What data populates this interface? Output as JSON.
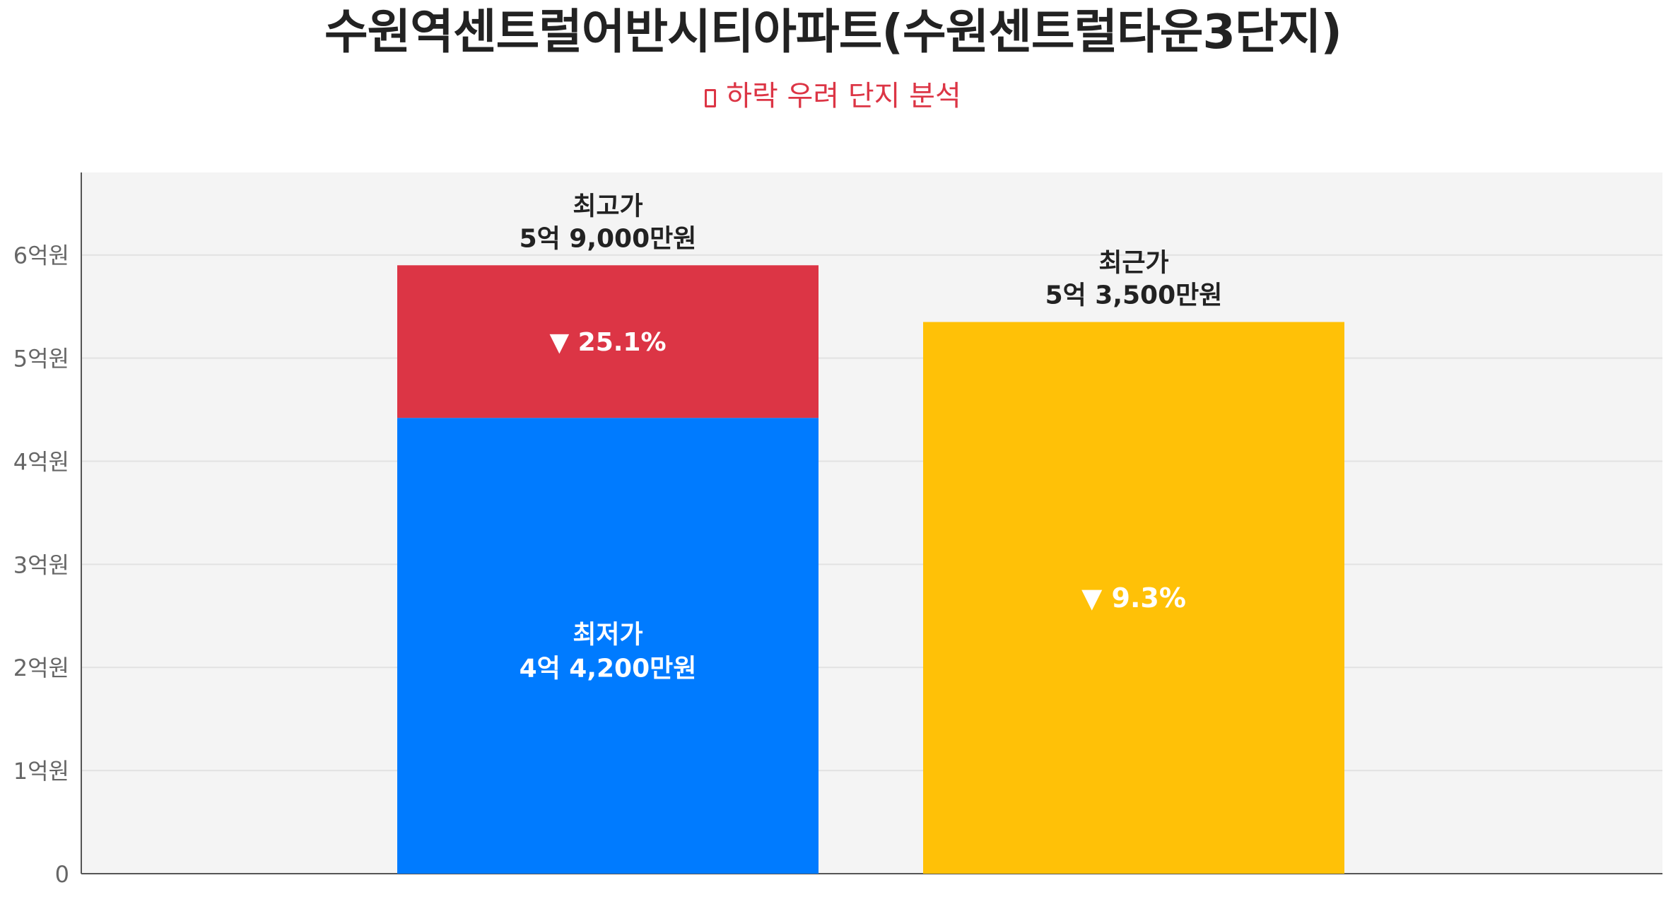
{
  "title": "수원역센트럴어반시티아파트(수원센트럴타운3단지)",
  "subtitle": "하락 우려 단지 분석",
  "colors": {
    "background_plot": "#f4f4f4",
    "lowest": "#007bff",
    "drop": "#dc3545",
    "recent": "#ffc107",
    "text_dark": "#222222",
    "text_white": "#ffffff",
    "axis_text": "#666666"
  },
  "chart_data": {
    "type": "bar",
    "unit": "억원",
    "ylim": [
      0,
      6.8
    ],
    "y_ticks": [
      {
        "value": 0,
        "label": "0"
      },
      {
        "value": 1,
        "label": "1억원"
      },
      {
        "value": 2,
        "label": "2억원"
      },
      {
        "value": 3,
        "label": "3억원"
      },
      {
        "value": 4,
        "label": "4억원"
      },
      {
        "value": 5,
        "label": "5억원"
      },
      {
        "value": 6,
        "label": "6억원"
      }
    ],
    "grid": true,
    "bars": [
      {
        "kind": "stacked",
        "segments": [
          {
            "name": "최저가",
            "value": 4.42,
            "label_line1": "최저가",
            "label_line2": "4억 4,200만원",
            "color": "#007bff"
          },
          {
            "name": "최고가",
            "value": 1.48,
            "top_value": 5.9,
            "inner_label": "▼ 25.1%",
            "color": "#dc3545"
          }
        ],
        "top_label_line1": "최고가",
        "top_label_line2": "5억 9,000만원"
      },
      {
        "kind": "single",
        "name": "최근가",
        "value": 5.35,
        "inner_label": "▼ 9.3%",
        "top_label_line1": "최근가",
        "top_label_line2": "5억 3,500만원",
        "color": "#ffc107"
      }
    ]
  }
}
